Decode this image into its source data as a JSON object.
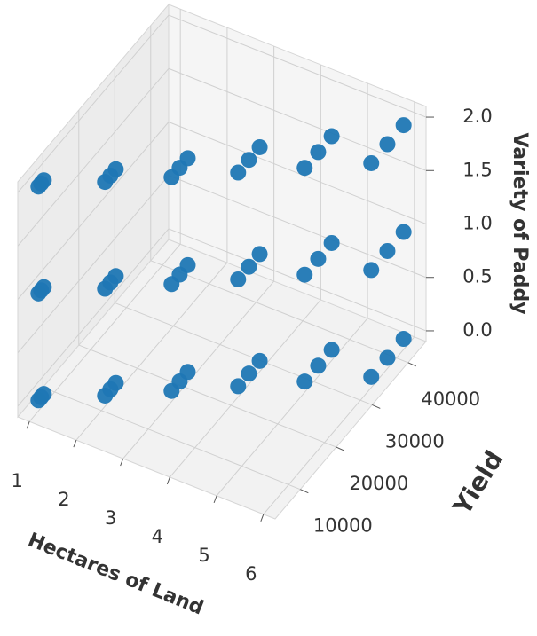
{
  "chart_data": {
    "type": "scatter3d",
    "xlabel": "Hectares of Land",
    "ylabel": "Yield",
    "zlabel": "Variety of Paddy",
    "color": "#1f77b4",
    "grid": true,
    "xlim": [
      0.75,
      6.25
    ],
    "ylim": [
      3000,
      45000
    ],
    "zlim": [
      -0.1,
      2.1
    ],
    "xticks": [
      1,
      2,
      3,
      4,
      5,
      6
    ],
    "yticks": [
      10000,
      20000,
      30000,
      40000
    ],
    "zticks": [
      {
        "value": 0,
        "label": "0.0"
      },
      {
        "value": 0.5,
        "label": "0.5"
      },
      {
        "value": 1,
        "label": "1.0"
      },
      {
        "value": 1.5,
        "label": "1.5"
      },
      {
        "value": 2,
        "label": "2.0"
      }
    ],
    "x": [
      1,
      1,
      1,
      1,
      1,
      1,
      1,
      1,
      1,
      2,
      2,
      2,
      2,
      2,
      2,
      2,
      2,
      2,
      3,
      3,
      3,
      3,
      3,
      3,
      3,
      3,
      3,
      4,
      4,
      4,
      4,
      4,
      4,
      4,
      4,
      4,
      5,
      5,
      5,
      5,
      5,
      5,
      5,
      5,
      5,
      6,
      6,
      6,
      6,
      6,
      6,
      6,
      6,
      6
    ],
    "y": [
      5500,
      6250,
      7000,
      5500,
      6250,
      7000,
      5500,
      6250,
      7000,
      11000,
      12500,
      14000,
      11000,
      12500,
      14000,
      11000,
      12500,
      14000,
      16500,
      18750,
      21000,
      16500,
      18750,
      21000,
      16500,
      18750,
      21000,
      22000,
      25000,
      28000,
      22000,
      25000,
      28000,
      22000,
      25000,
      28000,
      27500,
      31250,
      35000,
      27500,
      31250,
      35000,
      27500,
      31250,
      35000,
      33000,
      37500,
      42000,
      33000,
      37500,
      42000,
      33000,
      37500,
      42000
    ],
    "z": [
      0,
      0,
      0,
      1,
      1,
      1,
      2,
      2,
      2,
      0,
      0,
      0,
      1,
      1,
      1,
      2,
      2,
      2,
      0,
      0,
      0,
      1,
      1,
      1,
      2,
      2,
      2,
      0,
      0,
      0,
      1,
      1,
      1,
      2,
      2,
      2,
      0,
      0,
      0,
      1,
      1,
      1,
      2,
      2,
      2,
      0,
      0,
      0,
      1,
      1,
      1,
      2,
      2,
      2
    ]
  }
}
